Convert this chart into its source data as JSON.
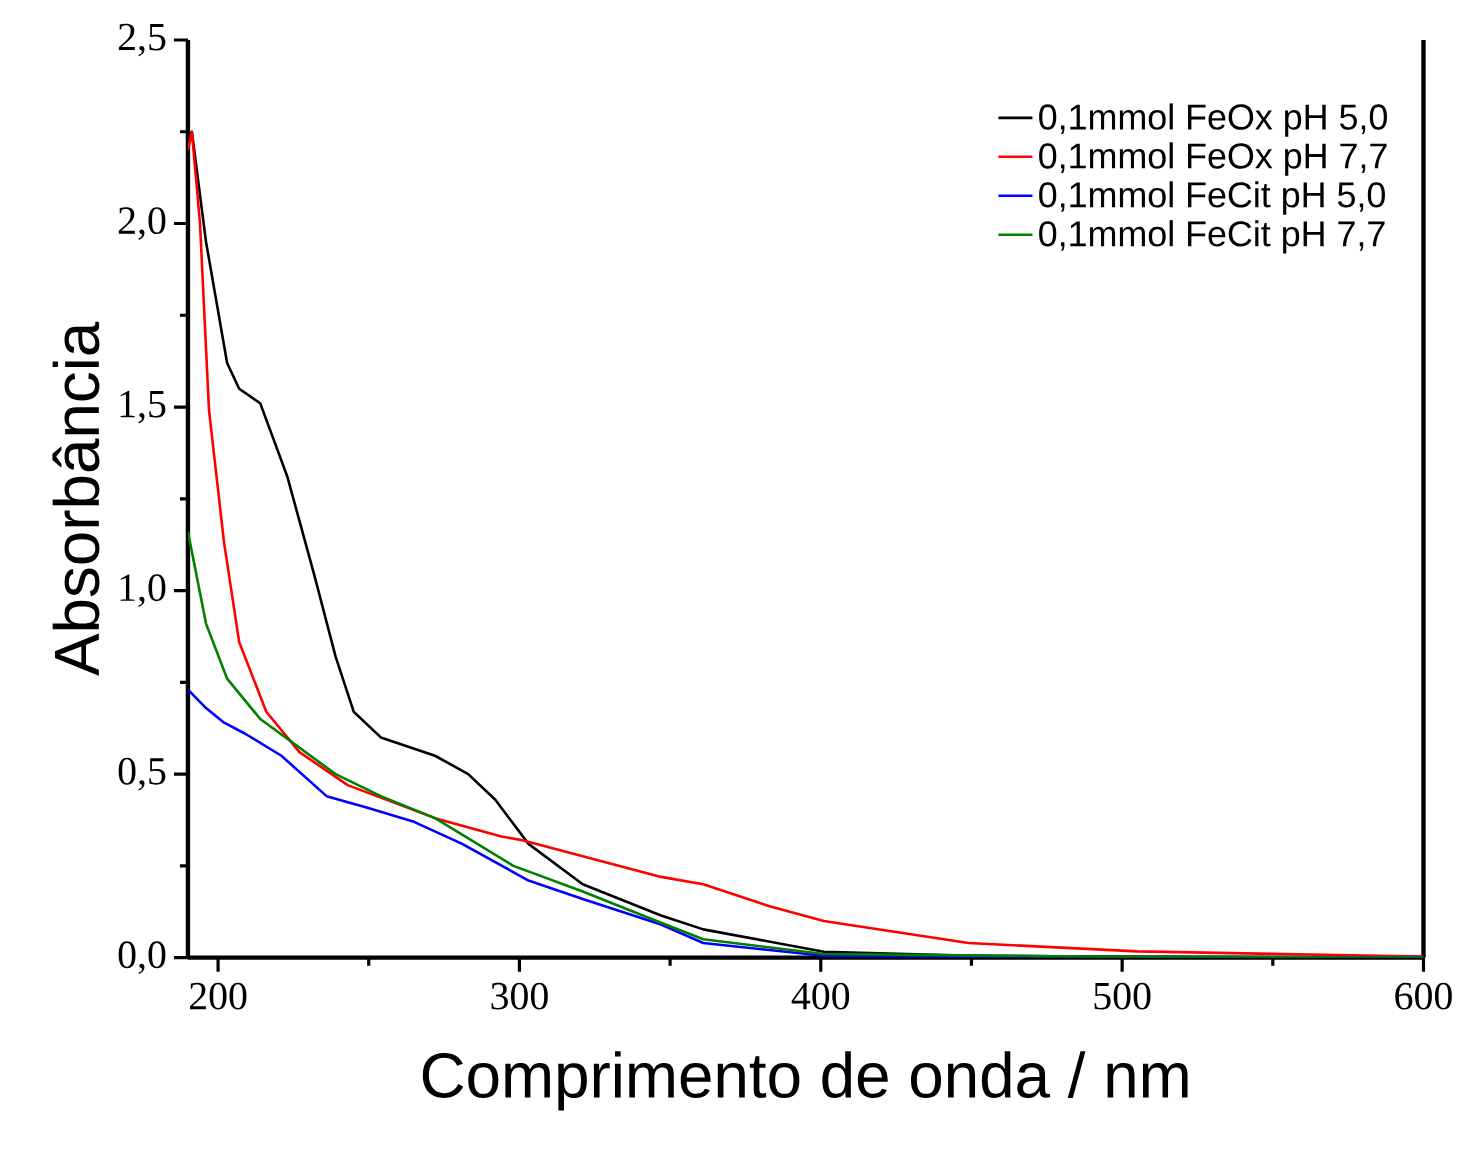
{
  "chart_data": {
    "type": "line",
    "xlabel": "Comprimento de onda / nm",
    "ylabel": "Absorbância",
    "xlim": [
      190,
      600
    ],
    "xticks": [
      200,
      300,
      400,
      500,
      600
    ],
    "ylim": [
      0,
      2.5
    ],
    "yticks": [
      {
        "value": 0,
        "label": "0,0"
      },
      {
        "value": 0.5,
        "label": "0,5"
      },
      {
        "value": 1,
        "label": "1,0"
      },
      {
        "value": 1.5,
        "label": "1,5"
      },
      {
        "value": 2,
        "label": "2,0"
      },
      {
        "value": 2.5,
        "label": "2,5"
      }
    ],
    "legend": "top right",
    "grid": false,
    "marker": "none",
    "line_style": "solid",
    "series": [
      {
        "name": "0,1mmol FeOx pH 5,0",
        "color": "#000000",
        "x": [
          190,
          191.3,
          196,
          203,
          207,
          214,
          223,
          232,
          239,
          245,
          254,
          272,
          283,
          292,
          303,
          321,
          347,
          361,
          401,
          450,
          500,
          600
        ],
        "values": [
          2.23,
          2.25,
          1.95,
          1.62,
          1.55,
          1.51,
          1.31,
          1.04,
          0.82,
          0.67,
          0.6,
          0.55,
          0.5,
          0.43,
          0.31,
          0.2,
          0.115,
          0.077,
          0.016,
          0.005,
          0.002,
          0
        ]
      },
      {
        "name": "0,1mmol FeOx pH 7,7",
        "color": "#ff0000",
        "x": [
          190,
          191.3,
          194,
          197,
          202,
          207,
          216,
          227,
          243,
          272,
          294,
          301,
          347,
          361,
          383,
          401,
          449,
          505,
          599,
          600
        ],
        "values": [
          2.2,
          2.25,
          2.0,
          1.49,
          1.13,
          0.86,
          0.67,
          0.56,
          0.47,
          0.38,
          0.33,
          0.32,
          0.22,
          0.2,
          0.14,
          0.1,
          0.04,
          0.017,
          0.003,
          0.003
        ]
      },
      {
        "name": "0,1mmol FeCit pH 5,0",
        "color": "#0000ff",
        "x": [
          190,
          196,
          202,
          209,
          221,
          236,
          249,
          265,
          281,
          303,
          321,
          347,
          361,
          401,
          500,
          600
        ],
        "values": [
          0.73,
          0.68,
          0.64,
          0.61,
          0.55,
          0.44,
          0.41,
          0.37,
          0.31,
          0.21,
          0.16,
          0.09,
          0.04,
          0.005,
          0,
          0
        ]
      },
      {
        "name": "0,1mmol FeCit pH 7,7",
        "color": "#008000",
        "x": [
          190,
          196,
          203,
          214,
          239,
          254,
          272,
          298,
          321,
          347,
          361,
          401,
          500,
          600
        ],
        "values": [
          1.16,
          0.91,
          0.76,
          0.65,
          0.5,
          0.44,
          0.38,
          0.25,
          0.18,
          0.095,
          0.05,
          0.01,
          0.002,
          0
        ]
      }
    ]
  }
}
